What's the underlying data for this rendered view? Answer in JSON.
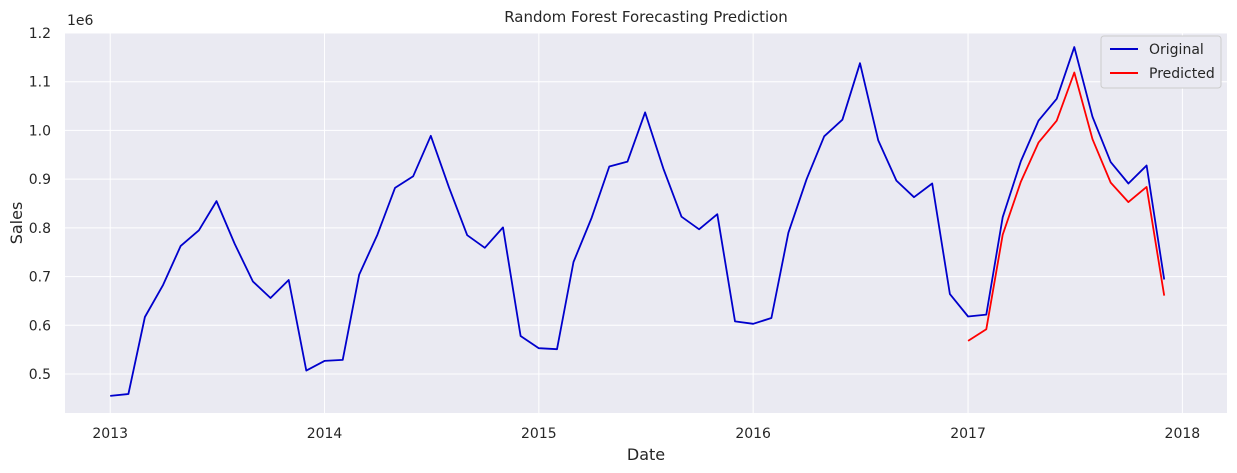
{
  "chart_data": {
    "type": "line",
    "title": "Random Forest Forecasting Prediction",
    "xlabel": "Date",
    "ylabel": "Sales",
    "y_offset_label": "1e6",
    "x_ticks": [
      "2013",
      "2014",
      "2015",
      "2016",
      "2017",
      "2018"
    ],
    "y_ticks": [
      "0.5",
      "0.6",
      "0.7",
      "0.8",
      "0.9",
      "1.0",
      "1.1",
      "1.2"
    ],
    "xlim": [
      "2012-10-16",
      "2018-03-18"
    ],
    "ylim": [
      0.42,
      1.2
    ],
    "y_scale": 1000000,
    "grid": true,
    "legend_position": "upper-right",
    "colors": {
      "background": "#eaeaf2",
      "grid": "#ffffff",
      "original": "#0000cc",
      "predicted": "#ff0000"
    },
    "series": [
      {
        "name": "Original",
        "color": "#0000cc",
        "x": [
          "2013-01-01",
          "2013-02-01",
          "2013-03-01",
          "2013-04-01",
          "2013-05-01",
          "2013-06-01",
          "2013-07-01",
          "2013-08-01",
          "2013-09-01",
          "2013-10-01",
          "2013-11-01",
          "2013-12-01",
          "2014-01-01",
          "2014-02-01",
          "2014-03-01",
          "2014-04-01",
          "2014-05-01",
          "2014-06-01",
          "2014-07-01",
          "2014-08-01",
          "2014-09-01",
          "2014-10-01",
          "2014-11-01",
          "2014-12-01",
          "2015-01-01",
          "2015-02-01",
          "2015-03-01",
          "2015-04-01",
          "2015-05-01",
          "2015-06-01",
          "2015-07-01",
          "2015-08-01",
          "2015-09-01",
          "2015-10-01",
          "2015-11-01",
          "2015-12-01",
          "2016-01-01",
          "2016-02-01",
          "2016-03-01",
          "2016-04-01",
          "2016-05-01",
          "2016-06-01",
          "2016-07-01",
          "2016-08-01",
          "2016-09-01",
          "2016-10-01",
          "2016-11-01",
          "2016-12-01",
          "2017-01-01",
          "2017-02-01",
          "2017-03-01",
          "2017-04-01",
          "2017-05-01",
          "2017-06-01",
          "2017-07-01",
          "2017-08-01",
          "2017-09-01",
          "2017-10-01",
          "2017-11-01",
          "2017-12-01"
        ],
        "y": [
          0.455,
          0.459,
          0.617,
          0.683,
          0.763,
          0.795,
          0.855,
          0.767,
          0.69,
          0.656,
          0.693,
          0.507,
          0.527,
          0.529,
          0.704,
          0.786,
          0.882,
          0.906,
          0.989,
          0.883,
          0.785,
          0.759,
          0.801,
          0.578,
          0.553,
          0.551,
          0.73,
          0.821,
          0.926,
          0.936,
          1.037,
          0.922,
          0.823,
          0.797,
          0.828,
          0.608,
          0.603,
          0.615,
          0.79,
          0.9,
          0.988,
          1.022,
          1.138,
          0.98,
          0.897,
          0.863,
          0.891,
          0.664,
          0.618,
          0.622,
          0.822,
          0.937,
          1.02,
          1.065,
          1.171,
          1.028,
          0.935,
          0.891,
          0.928,
          0.694
        ]
      },
      {
        "name": "Predicted",
        "color": "#ff0000",
        "x": [
          "2017-01-01",
          "2017-02-01",
          "2017-03-01",
          "2017-04-01",
          "2017-05-01",
          "2017-06-01",
          "2017-07-01",
          "2017-08-01",
          "2017-09-01",
          "2017-10-01",
          "2017-11-01",
          "2017-12-01"
        ],
        "y": [
          0.568,
          0.592,
          0.786,
          0.895,
          0.975,
          1.02,
          1.119,
          0.982,
          0.893,
          0.853,
          0.884,
          0.661
        ]
      }
    ]
  }
}
